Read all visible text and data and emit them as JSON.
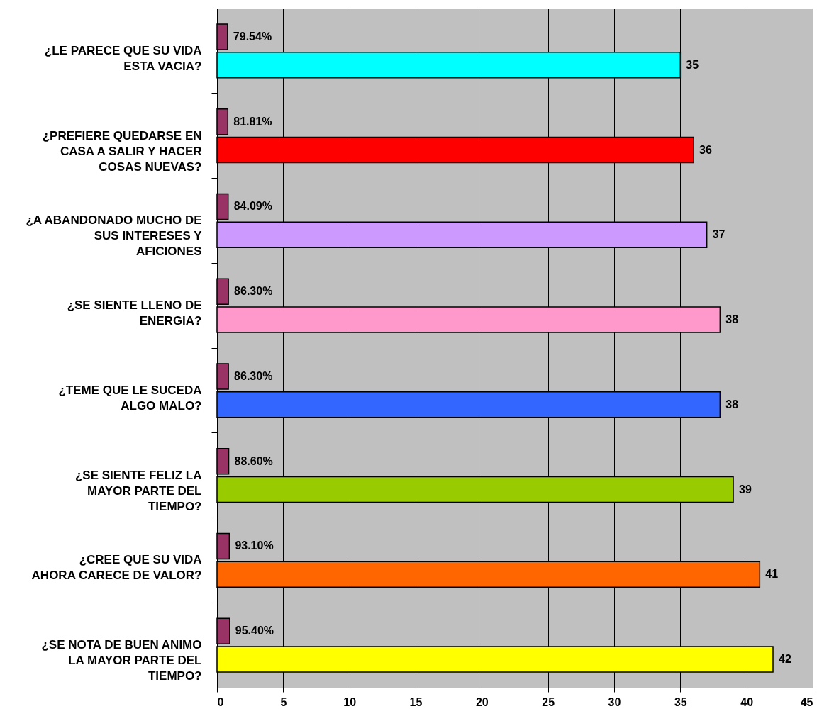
{
  "chart_data": {
    "type": "bar",
    "orientation": "horizontal",
    "categories": [
      "¿LE PARECE QUE SU VIDA ESTA VACIA?",
      "¿PREFIERE QUEDARSE EN CASA A SALIR Y HACER COSAS NUEVAS?",
      "¿A ABANDONADO MUCHO DE SUS INTERESES Y AFICIONES",
      "¿SE SIENTE LLENO DE ENERGIA?",
      "¿TEME QUE LE SUCEDA ALGO MALO?",
      "¿SE SIENTE FELIZ LA MAYOR PARTE DEL TIEMPO?",
      "¿CREE QUE SU VIDA AHORA CARECE DE VALOR?",
      "¿SE NOTA DE BUEN ANIMO LA MAYOR PARTE DEL TIEMPO?"
    ],
    "series": [
      {
        "color": "#993366",
        "values": [
          0.7954,
          0.8181,
          0.8409,
          0.863,
          0.863,
          0.886,
          0.931,
          0.954
        ],
        "value_labels": [
          "79.54%",
          "81.81%",
          "84.09%",
          "86.30%",
          "86.30%",
          "88.60%",
          "93.10%",
          "95.40%"
        ]
      },
      {
        "colors": [
          "#00ffff",
          "#ff0000",
          "#cc99ff",
          "#ff99cc",
          "#3366ff",
          "#99cc00",
          "#ff6600",
          "#ffff00"
        ],
        "values": [
          35,
          36,
          37,
          38,
          38,
          39,
          41,
          42
        ],
        "value_labels": [
          "35",
          "36",
          "37",
          "38",
          "38",
          "39",
          "41",
          "42"
        ]
      }
    ],
    "xlim": [
      0,
      45
    ],
    "xticks": [
      0,
      5,
      10,
      15,
      20,
      25,
      30,
      35,
      40,
      45
    ],
    "grid": "x",
    "legend": false
  }
}
